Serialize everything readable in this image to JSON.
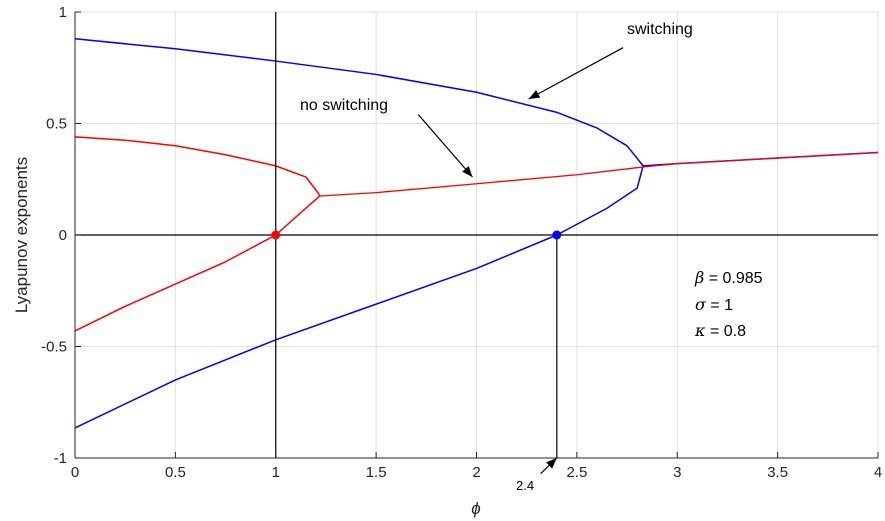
{
  "chart_data": {
    "type": "line",
    "xlabel": "ϕ",
    "ylabel": "Lyapunov exponents",
    "xlim": [
      0,
      4
    ],
    "ylim": [
      -1,
      1
    ],
    "x_ticks": [
      "0",
      "0.5",
      "1",
      "1.5",
      "2",
      "2.5",
      "3",
      "3.5",
      "4"
    ],
    "y_ticks": [
      "-1",
      "-0.5",
      "0",
      "0.5",
      "1"
    ],
    "grid": true,
    "colors": {
      "switching": "#0000ff",
      "no_switching": "#ff0000",
      "axis_lines": "#000000"
    },
    "series": [
      {
        "name": "switching",
        "color": "#0000ff",
        "points": [
          [
            0,
            0.88
          ],
          [
            0.5,
            0.835
          ],
          [
            1,
            0.78
          ],
          [
            1.5,
            0.72
          ],
          [
            2,
            0.64
          ],
          [
            2.4,
            0.55
          ],
          [
            2.6,
            0.48
          ],
          [
            2.75,
            0.4
          ],
          [
            2.83,
            0.31
          ],
          [
            2.8,
            0.21
          ],
          [
            2.65,
            0.12
          ],
          [
            2.4,
            0.0
          ],
          [
            2,
            -0.15
          ],
          [
            1.5,
            -0.31
          ],
          [
            1,
            -0.47
          ],
          [
            0.5,
            -0.65
          ],
          [
            0,
            -0.865
          ]
        ],
        "merged": [
          [
            2.83,
            0.31
          ],
          [
            3,
            0.32
          ],
          [
            3.5,
            0.345
          ],
          [
            4,
            0.37
          ]
        ]
      },
      {
        "name": "no switching",
        "color": "#ff0000",
        "points": [
          [
            0,
            0.44
          ],
          [
            0.25,
            0.425
          ],
          [
            0.5,
            0.4
          ],
          [
            0.75,
            0.36
          ],
          [
            1,
            0.31
          ],
          [
            1.15,
            0.26
          ],
          [
            1.21,
            0.19
          ],
          [
            1.22,
            0.175
          ],
          [
            1.15,
            0.12
          ],
          [
            1,
            0.0
          ],
          [
            0.75,
            -0.12
          ],
          [
            0.5,
            -0.22
          ],
          [
            0.25,
            -0.32
          ],
          [
            0,
            -0.43
          ]
        ],
        "merged": [
          [
            1.22,
            0.175
          ],
          [
            1.5,
            0.19
          ],
          [
            2,
            0.23
          ],
          [
            2.5,
            0.27
          ],
          [
            2.83,
            0.305
          ],
          [
            3,
            0.32
          ],
          [
            3.5,
            0.345
          ],
          [
            4,
            0.37
          ]
        ]
      }
    ],
    "markers": [
      {
        "x": 1,
        "y": 0,
        "color": "#ff0000"
      },
      {
        "x": 2.4,
        "y": 0,
        "color": "#0000ff"
      }
    ],
    "vertical_lines": [
      1,
      2.4
    ],
    "annotations": [
      {
        "text": "switching",
        "text_at": [
          2.85,
          0.93
        ],
        "arrow_from": [
          2.73,
          0.84
        ],
        "arrow_to": [
          2.26,
          0.61
        ]
      },
      {
        "text": "no switching",
        "text_at": [
          1.13,
          0.56
        ],
        "arrow_from": [
          1.71,
          0.54
        ],
        "arrow_to": [
          1.98,
          0.26
        ]
      },
      {
        "text": "2.4",
        "text_at": [
          2.27,
          -1.1
        ],
        "arrow_from": [
          2.32,
          -1.07
        ],
        "arrow_to": [
          2.4,
          -1.0
        ]
      }
    ],
    "parameters": [
      {
        "symbol": "β",
        "text": " = 0.985"
      },
      {
        "symbol": "σ",
        "text": " = 1"
      },
      {
        "symbol": "κ",
        "text": " = 0.8"
      }
    ]
  }
}
